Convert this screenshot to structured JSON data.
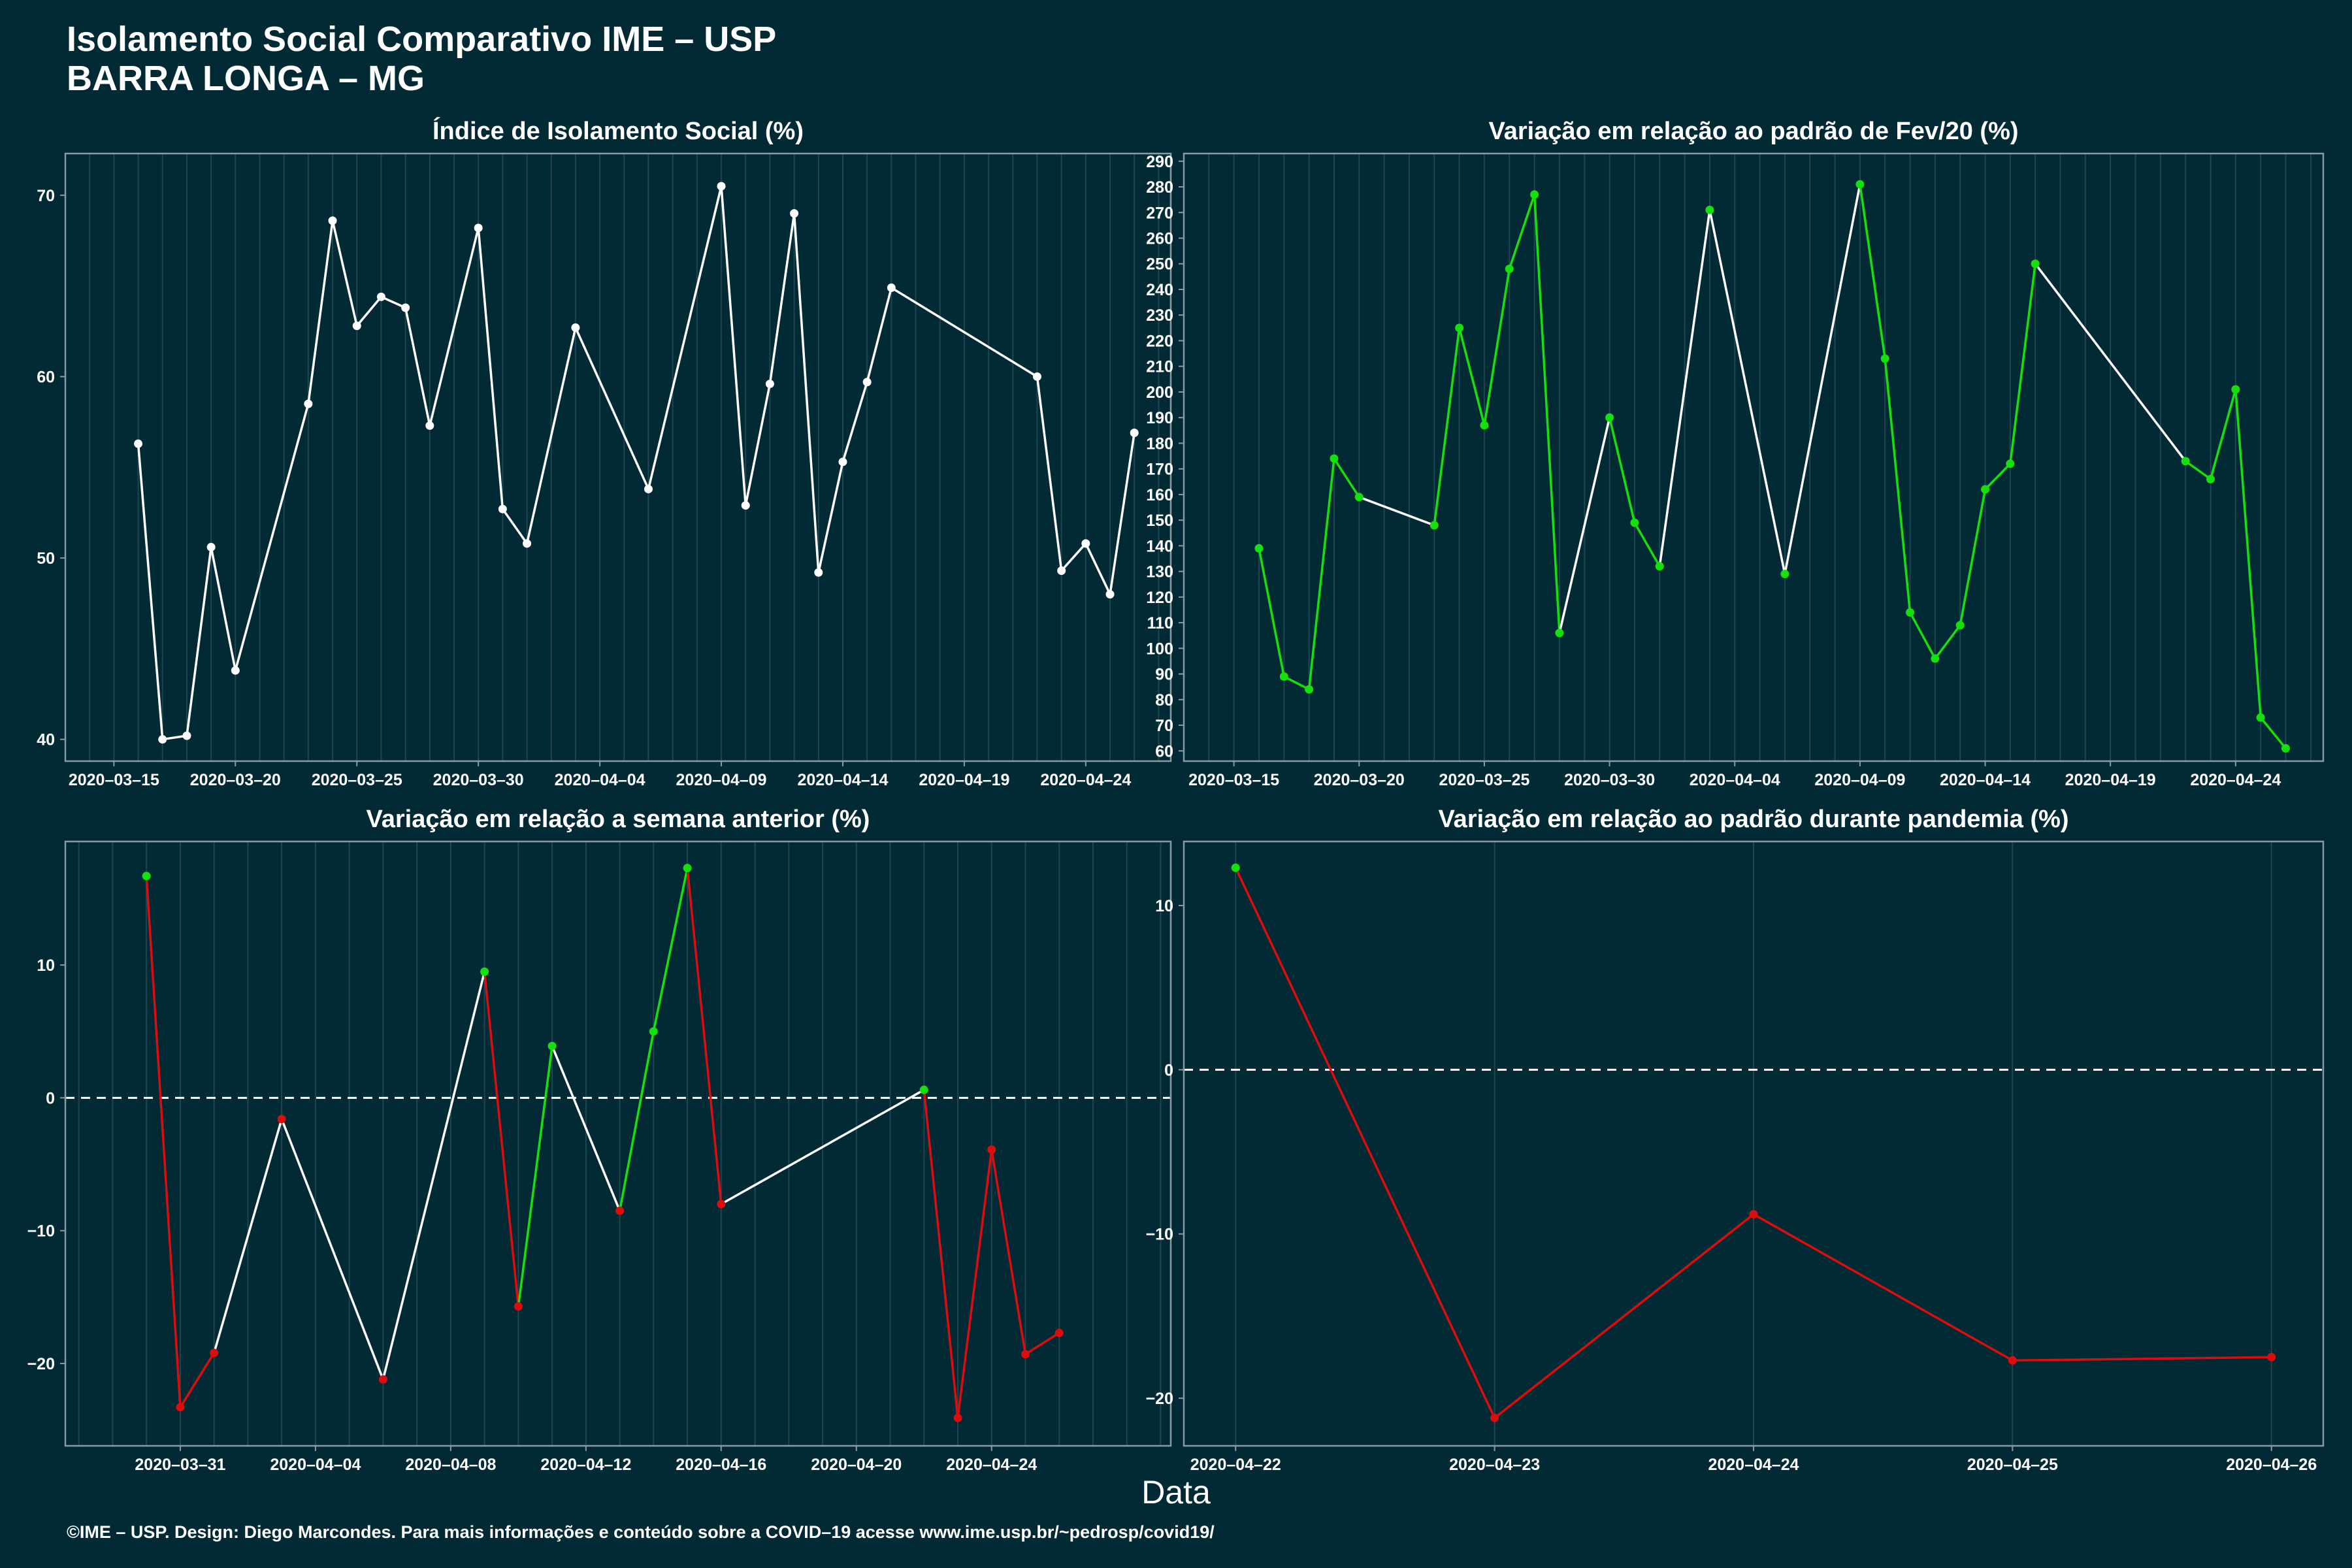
{
  "header": {
    "title_line1": "Isolamento Social Comparativo IME – USP",
    "title_line2": "BARRA LONGA – MG"
  },
  "x_axis_label": "Data",
  "footer": "©IME – USP. Design: Diego Marcondes. Para mais informações e conteúdo sobre a COVID–19 acesse www.ime.usp.br/~pedrosp/covid19/",
  "colors": {
    "background": "#022a35",
    "white": "#ffffff",
    "green": "#16e00c",
    "red": "#dd0d0d",
    "grid": "#1c4650",
    "axis": "#8a9aa0"
  },
  "chart_data": [
    {
      "type": "line",
      "title": "Índice de Isolamento Social (%)",
      "x_ticks": [
        "2020–03–15",
        "2020–03–20",
        "2020–03–25",
        "2020–03–30",
        "2020–04–04",
        "2020–04–09",
        "2020–04–14",
        "2020–04–19",
        "2020–04–24"
      ],
      "x_tick_dates": [
        "2020-03-15",
        "2020-03-20",
        "2020-03-25",
        "2020-03-30",
        "2020-04-04",
        "2020-04-09",
        "2020-04-14",
        "2020-04-19",
        "2020-04-24"
      ],
      "xlim": [
        "2020-03-13",
        "2020-04-27.5"
      ],
      "y_ticks": [
        40,
        50,
        60,
        70
      ],
      "ylim": [
        38.8,
        72.3
      ],
      "point_color": "white",
      "points": [
        {
          "x": "2020-03-16",
          "y": 56.3
        },
        {
          "x": "2020-03-17",
          "y": 40.0
        },
        {
          "x": "2020-03-18",
          "y": 40.2
        },
        {
          "x": "2020-03-19",
          "y": 50.6
        },
        {
          "x": "2020-03-20",
          "y": 43.8
        },
        {
          "x": "2020-03-23",
          "y": 58.5
        },
        {
          "x": "2020-03-24",
          "y": 68.6
        },
        {
          "x": "2020-03-25",
          "y": 62.8
        },
        {
          "x": "2020-03-26",
          "y": 64.4
        },
        {
          "x": "2020-03-27",
          "y": 63.8
        },
        {
          "x": "2020-03-28",
          "y": 57.3
        },
        {
          "x": "2020-03-30",
          "y": 68.2
        },
        {
          "x": "2020-03-31",
          "y": 52.7
        },
        {
          "x": "2020-04-01",
          "y": 50.8
        },
        {
          "x": "2020-04-03",
          "y": 62.7
        },
        {
          "x": "2020-04-06",
          "y": 53.8
        },
        {
          "x": "2020-04-09",
          "y": 70.5
        },
        {
          "x": "2020-04-10",
          "y": 52.9
        },
        {
          "x": "2020-04-11",
          "y": 59.6
        },
        {
          "x": "2020-04-12",
          "y": 69.0
        },
        {
          "x": "2020-04-13",
          "y": 49.2
        },
        {
          "x": "2020-04-14",
          "y": 55.3
        },
        {
          "x": "2020-04-15",
          "y": 59.7
        },
        {
          "x": "2020-04-16",
          "y": 64.9
        },
        {
          "x": "2020-04-22",
          "y": 60.0
        },
        {
          "x": "2020-04-23",
          "y": 49.3
        },
        {
          "x": "2020-04-24",
          "y": 50.8
        },
        {
          "x": "2020-04-25",
          "y": 48.0
        },
        {
          "x": "2020-04-26",
          "y": 56.9
        }
      ],
      "segment_colors": [
        "white",
        "white",
        "white",
        "white",
        "white",
        "white",
        "white",
        "white",
        "white",
        "white",
        "white",
        "white",
        "white",
        "white",
        "white",
        "white",
        "white",
        "white",
        "white",
        "white",
        "white",
        "white",
        "white",
        "white",
        "white",
        "white",
        "white",
        "white"
      ]
    },
    {
      "type": "line",
      "title": "Variação em relação ao padrão de Fev/20 (%)",
      "x_ticks": [
        "2020–03–15",
        "2020–03–20",
        "2020–03–25",
        "2020–03–30",
        "2020–04–04",
        "2020–04–09",
        "2020–04–14",
        "2020–04–19",
        "2020–04–24"
      ],
      "x_tick_dates": [
        "2020-03-15",
        "2020-03-20",
        "2020-03-25",
        "2020-03-30",
        "2020-04-04",
        "2020-04-09",
        "2020-04-14",
        "2020-04-19",
        "2020-04-24"
      ],
      "xlim": [
        "2020-03-13",
        "2020-04-27.5"
      ],
      "y_ticks": [
        60,
        70,
        80,
        90,
        100,
        110,
        120,
        130,
        140,
        150,
        160,
        170,
        180,
        190,
        200,
        210,
        220,
        230,
        240,
        250,
        260,
        270,
        280,
        290
      ],
      "ylim": [
        56,
        293
      ],
      "points": [
        {
          "x": "2020-03-16",
          "y": 139,
          "c": "green"
        },
        {
          "x": "2020-03-17",
          "y": 89,
          "c": "green"
        },
        {
          "x": "2020-03-18",
          "y": 84,
          "c": "green"
        },
        {
          "x": "2020-03-19",
          "y": 174,
          "c": "green"
        },
        {
          "x": "2020-03-20",
          "y": 159,
          "c": "green"
        },
        {
          "x": "2020-03-23",
          "y": 148,
          "c": "green"
        },
        {
          "x": "2020-03-24",
          "y": 225,
          "c": "green"
        },
        {
          "x": "2020-03-25",
          "y": 187,
          "c": "green"
        },
        {
          "x": "2020-03-26",
          "y": 248,
          "c": "green"
        },
        {
          "x": "2020-03-27",
          "y": 277,
          "c": "green"
        },
        {
          "x": "2020-03-28",
          "y": 106,
          "c": "green"
        },
        {
          "x": "2020-03-30",
          "y": 190,
          "c": "green"
        },
        {
          "x": "2020-03-31",
          "y": 149,
          "c": "green"
        },
        {
          "x": "2020-04-01",
          "y": 132,
          "c": "green"
        },
        {
          "x": "2020-04-03",
          "y": 271,
          "c": "green"
        },
        {
          "x": "2020-04-06",
          "y": 129,
          "c": "green"
        },
        {
          "x": "2020-04-09",
          "y": 281,
          "c": "green"
        },
        {
          "x": "2020-04-10",
          "y": 213,
          "c": "green"
        },
        {
          "x": "2020-04-11",
          "y": 114,
          "c": "green"
        },
        {
          "x": "2020-04-12",
          "y": 96,
          "c": "green"
        },
        {
          "x": "2020-04-13",
          "y": 109,
          "c": "green"
        },
        {
          "x": "2020-04-14",
          "y": 162,
          "c": "green"
        },
        {
          "x": "2020-04-15",
          "y": 172,
          "c": "green"
        },
        {
          "x": "2020-04-16",
          "y": 250,
          "c": "green"
        },
        {
          "x": "2020-04-22",
          "y": 173,
          "c": "green"
        },
        {
          "x": "2020-04-23",
          "y": 166,
          "c": "green"
        },
        {
          "x": "2020-04-24",
          "y": 201,
          "c": "green"
        },
        {
          "x": "2020-04-25",
          "y": 73,
          "c": "green"
        },
        {
          "x": "2020-04-26",
          "y": 61,
          "c": "green"
        }
      ],
      "segment_colors": [
        "green",
        "green",
        "green",
        "green",
        "white",
        "green",
        "green",
        "green",
        "green",
        "green",
        "white",
        "green",
        "green",
        "white",
        "white",
        "white",
        "green",
        "green",
        "green",
        "green",
        "green",
        "green",
        "green",
        "white",
        "green",
        "green",
        "green",
        "green"
      ]
    },
    {
      "type": "line",
      "title": "Variação em relação a semana anterior (%)",
      "x_ticks": [
        "2020–03–31",
        "2020–04–04",
        "2020–04–08",
        "2020–04–12",
        "2020–04–16",
        "2020–04–20",
        "2020–04–24"
      ],
      "x_tick_dates": [
        "2020-03-31",
        "2020-04-04",
        "2020-04-08",
        "2020-04-12",
        "2020-04-16",
        "2020-04-20",
        "2020-04-24"
      ],
      "xlim": [
        "2020-03-27.6",
        "2020-04-29.3"
      ],
      "y_ticks": [
        -20,
        -10,
        0,
        10
      ],
      "ylim": [
        -26.2,
        19.3
      ],
      "zero_line": true,
      "points": [
        {
          "x": "2020-03-30",
          "y": 16.7,
          "c": "green"
        },
        {
          "x": "2020-03-31",
          "y": -23.3,
          "c": "red"
        },
        {
          "x": "2020-04-01",
          "y": -19.2,
          "c": "red"
        },
        {
          "x": "2020-04-03",
          "y": -1.6,
          "c": "red"
        },
        {
          "x": "2020-04-06",
          "y": -21.2,
          "c": "red"
        },
        {
          "x": "2020-04-09",
          "y": 9.5,
          "c": "green"
        },
        {
          "x": "2020-04-10",
          "y": -15.7,
          "c": "red"
        },
        {
          "x": "2020-04-11",
          "y": 3.9,
          "c": "green"
        },
        {
          "x": "2020-04-13",
          "y": -8.5,
          "c": "red"
        },
        {
          "x": "2020-04-14",
          "y": 5.0,
          "c": "green"
        },
        {
          "x": "2020-04-15",
          "y": 17.3,
          "c": "green"
        },
        {
          "x": "2020-04-16",
          "y": -8.0,
          "c": "red"
        },
        {
          "x": "2020-04-22",
          "y": 0.6,
          "c": "green"
        },
        {
          "x": "2020-04-23",
          "y": -24.1,
          "c": "red"
        },
        {
          "x": "2020-04-24",
          "y": -3.9,
          "c": "red"
        },
        {
          "x": "2020-04-25",
          "y": -19.3,
          "c": "red"
        },
        {
          "x": "2020-04-26",
          "y": -17.7,
          "c": "red"
        }
      ],
      "segment_colors": [
        "red",
        "red",
        "white",
        "white",
        "white",
        "red",
        "green",
        "white",
        "green",
        "green",
        "red",
        "white",
        "red",
        "red",
        "red",
        "red"
      ]
    },
    {
      "type": "line",
      "title": "Variação em relação ao padrão durante pandemia (%)",
      "x_ticks": [
        "2020–04–22",
        "2020–04–23",
        "2020–04–24",
        "2020–04–25",
        "2020–04–26"
      ],
      "x_tick_dates": [
        "2020-04-22",
        "2020-04-23",
        "2020-04-24",
        "2020-04-25",
        "2020-04-26"
      ],
      "xlim": [
        "2020-04-21.8",
        "2020-04-26.2"
      ],
      "y_ticks": [
        -20,
        -10,
        0,
        10
      ],
      "ylim": [
        -22.9,
        13.9
      ],
      "zero_line": true,
      "points": [
        {
          "x": "2020-04-22",
          "y": 12.3,
          "c": "green"
        },
        {
          "x": "2020-04-23",
          "y": -21.2,
          "c": "red"
        },
        {
          "x": "2020-04-24",
          "y": -8.8,
          "c": "red"
        },
        {
          "x": "2020-04-25",
          "y": -17.7,
          "c": "red"
        },
        {
          "x": "2020-04-26",
          "y": -17.5,
          "c": "red"
        }
      ],
      "segment_colors": [
        "red",
        "red",
        "red",
        "red"
      ]
    }
  ]
}
